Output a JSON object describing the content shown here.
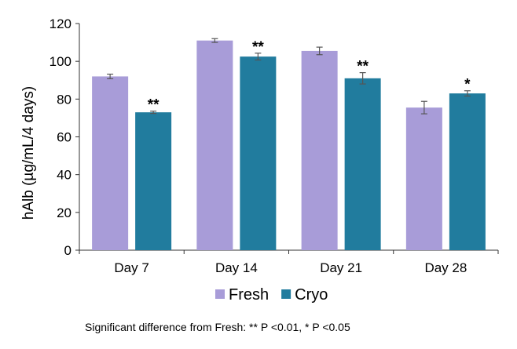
{
  "chart_data": {
    "type": "bar",
    "title": "",
    "xlabel": "",
    "ylabel": "hAlb (µg/mL/4 days)",
    "ylim": [
      0,
      120
    ],
    "yticks": [
      0,
      20,
      40,
      60,
      80,
      100,
      120
    ],
    "categories": [
      "Day 7",
      "Day 14",
      "Day 21",
      "Day 28"
    ],
    "series": [
      {
        "name": "Fresh",
        "color": "#a89cd8",
        "values": [
          92,
          111,
          105.5,
          75.5
        ],
        "errors": [
          1.2,
          1.0,
          2.0,
          3.3
        ],
        "significance": [
          "",
          "",
          "",
          ""
        ]
      },
      {
        "name": "Cryo",
        "color": "#217c9e",
        "values": [
          73,
          102.5,
          91,
          83
        ],
        "errors": [
          0.6,
          1.8,
          3.0,
          1.4
        ],
        "significance": [
          "**",
          "**",
          "**",
          "*"
        ]
      }
    ],
    "legend_position": "bottom",
    "footnote": "Significant difference from Fresh: ** P <0.01, * P <0.05"
  }
}
